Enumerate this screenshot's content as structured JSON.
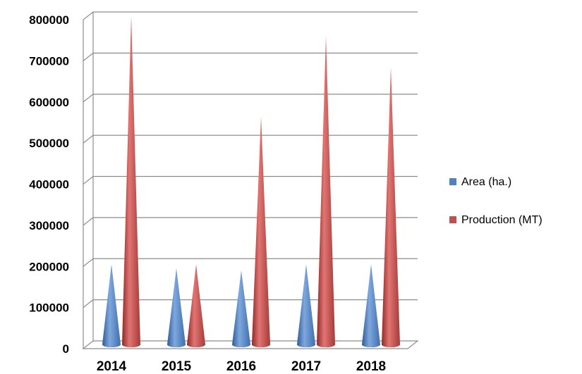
{
  "chart_data": {
    "type": "bar",
    "shape": "cone",
    "categories": [
      "2014",
      "2015",
      "2016",
      "2017",
      "2018"
    ],
    "series": [
      {
        "name": "Area (ha.)",
        "color": "#4f81bd",
        "values": [
          195000,
          185000,
          180000,
          195000,
          195000
        ]
      },
      {
        "name": "Production (MT)",
        "color": "#c0504d",
        "values": [
          800000,
          195000,
          555000,
          750000,
          675000
        ]
      }
    ],
    "yticks": [
      "0",
      "100000",
      "200000",
      "300000",
      "400000",
      "500000",
      "600000",
      "700000",
      "800000"
    ],
    "ylim": [
      0,
      800000
    ],
    "grid": true,
    "legend_position": "right"
  }
}
